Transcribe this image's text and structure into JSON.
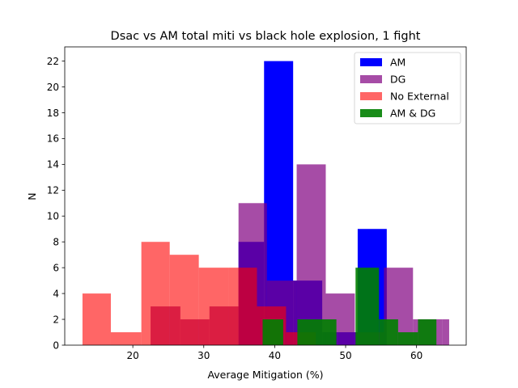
{
  "chart_data": {
    "type": "histogram",
    "title": "Dsac vs AM total miti vs black hole explosion, 1 fight",
    "xlabel": "Average Mitigation (%)",
    "ylabel": "N",
    "xlim": [
      10.4,
      67.0
    ],
    "ylim": [
      0,
      23.1
    ],
    "xticks": [
      20,
      30,
      40,
      50,
      60
    ],
    "yticks": [
      0,
      2,
      4,
      6,
      8,
      10,
      12,
      14,
      16,
      18,
      20,
      22
    ],
    "grid": false,
    "legend_position": "top-right",
    "series": [
      {
        "name": "AM",
        "color": "#0000ff",
        "alpha": 1.0,
        "bins": [
          {
            "x0": 34.9,
            "x1": 38.5,
            "count": 8
          },
          {
            "x0": 38.5,
            "x1": 42.6,
            "count": 22
          },
          {
            "x0": 42.6,
            "x1": 46.7,
            "count": 5
          },
          {
            "x0": 46.7,
            "x1": 51.7,
            "count": 1
          },
          {
            "x0": 51.7,
            "x1": 55.8,
            "count": 9
          }
        ]
      },
      {
        "name": "DG",
        "color": "#800080",
        "alpha": 0.7,
        "bins": [
          {
            "x0": 22.5,
            "x1": 26.7,
            "count": 3
          },
          {
            "x0": 26.7,
            "x1": 30.8,
            "count": 2
          },
          {
            "x0": 30.8,
            "x1": 34.9,
            "count": 3
          },
          {
            "x0": 34.9,
            "x1": 38.9,
            "count": 11
          },
          {
            "x0": 38.9,
            "x1": 43.1,
            "count": 5
          },
          {
            "x0": 43.1,
            "x1": 47.2,
            "count": 14
          },
          {
            "x0": 47.2,
            "x1": 51.3,
            "count": 4
          },
          {
            "x0": 51.3,
            "x1": 55.4,
            "count": 1
          },
          {
            "x0": 55.4,
            "x1": 59.5,
            "count": 6
          },
          {
            "x0": 59.5,
            "x1": 63.6,
            "count": 2
          },
          {
            "x0": 63.6,
            "x1": 64.6,
            "count": 2
          }
        ]
      },
      {
        "name": "No External",
        "color": "#ff0000",
        "alpha": 0.6,
        "bins": [
          {
            "x0": 12.9,
            "x1": 16.9,
            "count": 4
          },
          {
            "x0": 16.9,
            "x1": 21.2,
            "count": 1
          },
          {
            "x0": 21.2,
            "x1": 25.2,
            "count": 8
          },
          {
            "x0": 25.2,
            "x1": 29.3,
            "count": 7
          },
          {
            "x0": 29.3,
            "x1": 33.5,
            "count": 6
          },
          {
            "x0": 33.5,
            "x1": 37.5,
            "count": 6
          },
          {
            "x0": 37.5,
            "x1": 41.6,
            "count": 3
          },
          {
            "x0": 41.6,
            "x1": 45.8,
            "count": 1
          }
        ]
      },
      {
        "name": "AM & DG",
        "color": "#008000",
        "alpha": 0.9,
        "bins": [
          {
            "x0": 26.6,
            "x1": 38.3,
            "count": 0
          },
          {
            "x0": 38.3,
            "x1": 41.2,
            "count": 2
          },
          {
            "x0": 41.2,
            "x1": 43.2,
            "count": 0
          },
          {
            "x0": 43.2,
            "x1": 48.7,
            "count": 2
          },
          {
            "x0": 48.7,
            "x1": 51.4,
            "count": 0
          },
          {
            "x0": 51.4,
            "x1": 54.7,
            "count": 6
          },
          {
            "x0": 54.7,
            "x1": 57.4,
            "count": 2
          },
          {
            "x0": 57.4,
            "x1": 60.2,
            "count": 1
          },
          {
            "x0": 60.2,
            "x1": 62.8,
            "count": 2
          }
        ]
      }
    ]
  }
}
